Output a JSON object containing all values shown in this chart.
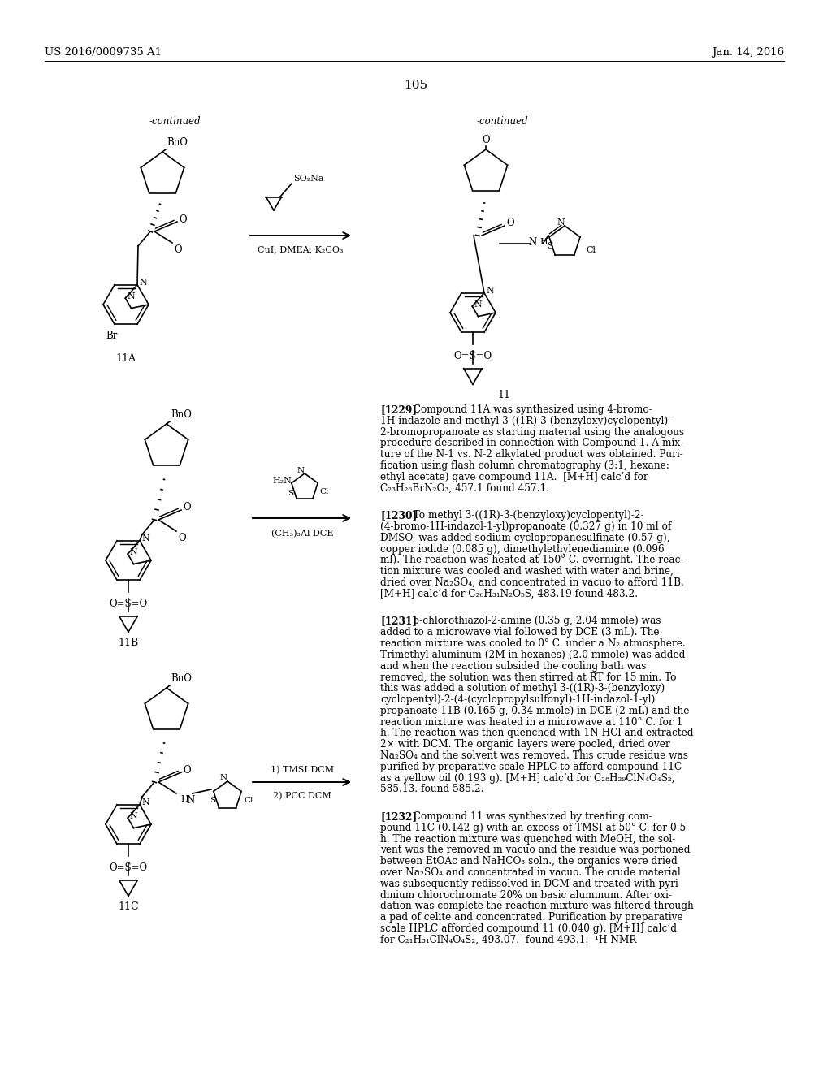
{
  "page_number": "105",
  "header_left": "US 2016/0009735 A1",
  "header_right": "Jan. 14, 2016",
  "background_color": "#ffffff",
  "text_color": "#000000",
  "para_1229": "[1229]   Compound 11A was synthesized using 4-bromo-\n1H-indazole and methyl 3-((1R)-3-(benzyloxy)cyclopentyl)-\n2-bromopropanoate as starting material using the analogous\nprocedure described in connection with Compound 1. A mix-\nture of the N-1 vs. N-2 alkylated product was obtained. Puri-\nfication using flash column chromatography (3:1, hexane:\nethyl acetate) gave compound 11A.  [M+H] calc’d for\nC₂₃H₂₆BrN₂O₃, 457.1 found 457.1.",
  "para_1230": "[1230]   To methyl 3-((1R)-3-(benzyloxy)cyclopentyl)-2-\n(4-bromo-1H-indazol-1-yl)propanoate (0.327 g) in 10 ml of\nDMSO, was added sodium cyclopropanesulfinate (0.57 g),\ncopper iodide (0.085 g), dimethylethylenediamine (0.096\nml). The reaction was heated at 150° C. overnight. The reac-\ntion mixture was cooled and washed with water and brine,\ndried over Na₂SO₄, and concentrated in vacuo to afford 11B.\n[M+H] calc’d for C₂₆H₃₁N₂O₅S, 483.19 found 483.2.",
  "para_1231": "[1231]   5-chlorothiazol-2-amine (0.35 g, 2.04 mmole) was\nadded to a microwave vial followed by DCE (3 mL). The\nreaction mixture was cooled to 0° C. under a N₂ atmosphere.\nTrimethyl aluminum (2M in hexanes) (2.0 mmole) was added\nand when the reaction subsided the cooling bath was\nremoved, the solution was then stirred at RT for 15 min. To\nthis was added a solution of methyl 3-((1R)-3-(benzyloxy)\ncyclopentyl)-2-(4-(cyclopropylsulfonyl)-1H-indazol-1-yl)\npropanoate 11B (0.165 g, 0.34 mmole) in DCE (2 mL) and the\nreaction mixture was heated in a microwave at 110° C. for 1\nh. The reaction was then quenched with 1N HCl and extracted\n2× with DCM. The organic layers were pooled, dried over\nNa₂SO₄ and the solvent was removed. This crude residue was\npurified by preparative scale HPLC to afford compound 11C\nas a yellow oil (0.193 g). [M+H] calc’d for C₂₈H₂₉ClN₄O₄S₂,\n585.13. found 585.2.",
  "para_1232": "[1232]   Compound 11 was synthesized by treating com-\npound 11C (0.142 g) with an excess of TMSI at 50° C. for 0.5\nh. The reaction mixture was quenched with MeOH, the sol-\nvent was the removed in vacuo and the residue was portioned\nbetween EtOAc and NaHCO₃ soln., the organics were dried\nover Na₂SO₄ and concentrated in vacuo. The crude material\nwas subsequently redissolved in DCM and treated with pyri-\ndinium chlorochromate 20% on basic aluminum. After oxi-\ndation was complete the reaction mixture was filtered through\na pad of celite and concentrated. Purification by preparative\nscale HPLC afforded compound 11 (0.040 g). [M+H] calc’d\nfor C₂₁H₃₁ClN₄O₄S₂, 493.07.  found 493.1.  ¹H NMR"
}
